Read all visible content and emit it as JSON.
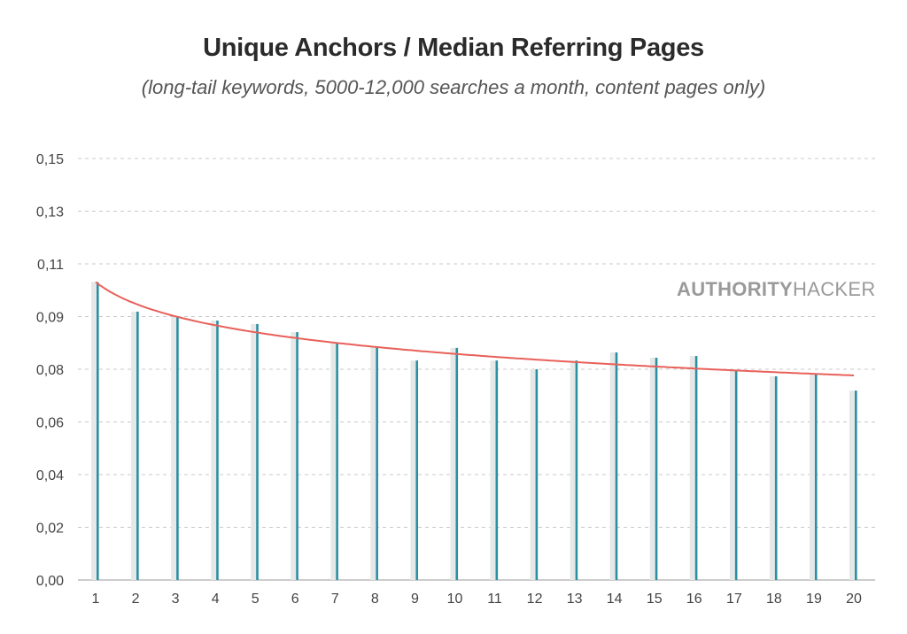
{
  "chart_data": {
    "type": "bar",
    "title": "Unique Anchors / Median Referring Pages",
    "subtitle": "(long-tail keywords, 5000-12,000 searches a month, content pages only)",
    "xlabel": "",
    "ylabel": "",
    "categories": [
      "1",
      "2",
      "3",
      "4",
      "5",
      "6",
      "7",
      "8",
      "9",
      "10",
      "11",
      "12",
      "13",
      "14",
      "15",
      "16",
      "17",
      "18",
      "19",
      "20"
    ],
    "values": [
      0.106,
      0.0955,
      0.0936,
      0.0923,
      0.0911,
      0.0882,
      0.0845,
      0.0829,
      0.0781,
      0.0826,
      0.0781,
      0.075,
      0.0781,
      0.081,
      0.0791,
      0.0797,
      0.0744,
      0.0725,
      0.0734,
      0.0674
    ],
    "ylim": [
      0,
      0.15
    ],
    "yticks": [
      "0,00",
      "0,02",
      "0,04",
      "0,06",
      "0,08",
      "0,09",
      "0,11",
      "0,13",
      "0,15"
    ],
    "trendline": {
      "type": "logarithmic",
      "start": 0.106,
      "end": 0.0728
    },
    "grid": true,
    "colors": {
      "bar": "#2a8fa3",
      "shadow": "#e6e8e8",
      "trend": "#e8605a"
    },
    "watermark": {
      "bold": "AUTHORITY",
      "light": "HACKER"
    }
  }
}
